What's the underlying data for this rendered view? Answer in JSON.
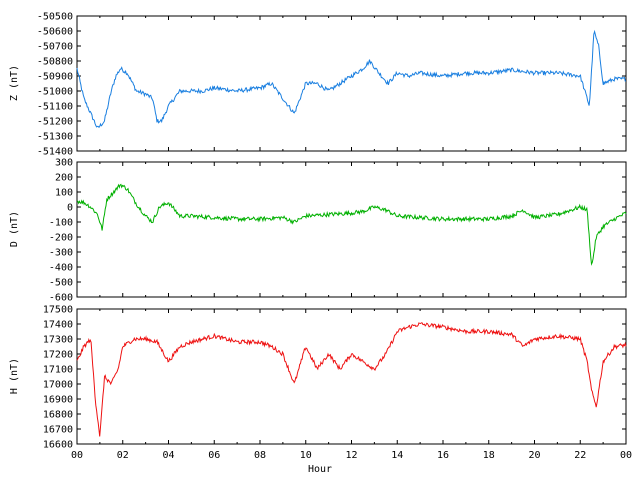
{
  "chart_data": {
    "type": "line",
    "x_axis": {
      "label": "Hour",
      "range": [
        0,
        24
      ],
      "tick_labels": [
        "00",
        "02",
        "04",
        "06",
        "08",
        "10",
        "12",
        "14",
        "16",
        "18",
        "20",
        "22",
        "00"
      ]
    },
    "panels": [
      {
        "ylabel": "Z (nT)",
        "color": "#1a7fe0",
        "ylim": [
          -51400,
          -50500
        ],
        "yticks": [
          -50500,
          -50600,
          -50700,
          -50800,
          -50900,
          -51000,
          -51100,
          -51200,
          -51300,
          -51400
        ],
        "series": {
          "x": [
            0,
            0.3,
            0.6,
            0.9,
            1.2,
            1.5,
            1.7,
            1.9,
            2.2,
            2.6,
            3.0,
            3.3,
            3.5,
            3.7,
            4.0,
            4.5,
            5.0,
            5.5,
            6.0,
            7.0,
            8.0,
            8.5,
            9.0,
            9.5,
            10.0,
            10.5,
            11.0,
            11.5,
            12.0,
            12.5,
            12.8,
            13.2,
            13.6,
            14.0,
            14.5,
            15.0,
            16.0,
            17.0,
            18.0,
            19.0,
            20.0,
            21.0,
            22.0,
            22.4,
            22.6,
            22.8,
            23.0,
            23.5,
            24.0
          ],
          "y": [
            -50850,
            -51050,
            -51150,
            -51250,
            -51200,
            -51000,
            -50900,
            -50850,
            -50880,
            -51000,
            -51020,
            -51050,
            -51200,
            -51200,
            -51100,
            -51000,
            -51000,
            -51000,
            -50980,
            -51000,
            -50980,
            -50950,
            -51050,
            -51150,
            -50950,
            -50950,
            -51000,
            -50950,
            -50900,
            -50850,
            -50800,
            -50880,
            -50950,
            -50880,
            -50900,
            -50880,
            -50900,
            -50880,
            -50880,
            -50860,
            -50880,
            -50880,
            -50900,
            -51100,
            -50600,
            -50700,
            -50950,
            -50920,
            -50920
          ]
        }
      },
      {
        "ylabel": "D (nT)",
        "color": "#00b000",
        "ylim": [
          -600,
          300
        ],
        "yticks": [
          300,
          200,
          100,
          0,
          -100,
          -200,
          -300,
          -400,
          -500,
          -600
        ],
        "series": {
          "x": [
            0,
            0.3,
            0.6,
            0.9,
            1.1,
            1.3,
            1.6,
            1.9,
            2.2,
            2.6,
            3.0,
            3.3,
            3.6,
            4.0,
            4.5,
            5.0,
            6.0,
            7.0,
            8.0,
            9.0,
            9.5,
            10.0,
            11.0,
            12.0,
            12.5,
            13.0,
            13.5,
            14.0,
            15.0,
            16.0,
            17.0,
            18.0,
            19.0,
            19.5,
            20.0,
            21.0,
            22.0,
            22.3,
            22.5,
            22.7,
            23.0,
            23.5,
            24.0
          ],
          "y": [
            40,
            30,
            0,
            -50,
            -150,
            50,
            100,
            150,
            120,
            20,
            -60,
            -100,
            0,
            30,
            -60,
            -60,
            -70,
            -80,
            -80,
            -70,
            -100,
            -60,
            -50,
            -40,
            -30,
            0,
            -20,
            -60,
            -70,
            -80,
            -80,
            -80,
            -60,
            -20,
            -70,
            -50,
            0,
            -20,
            -400,
            -200,
            -130,
            -80,
            -40
          ]
        }
      },
      {
        "ylabel": "H (nT)",
        "color": "#ee1111",
        "ylim": [
          16600,
          17500
        ],
        "yticks": [
          17500,
          17400,
          17300,
          17200,
          17100,
          17000,
          16900,
          16800,
          16700,
          16600
        ],
        "series": {
          "x": [
            0,
            0.3,
            0.6,
            0.8,
            1.0,
            1.2,
            1.5,
            1.8,
            2.0,
            2.5,
            3.0,
            3.5,
            4.0,
            4.5,
            5.0,
            5.5,
            6.0,
            6.5,
            7.0,
            8.0,
            8.5,
            9.0,
            9.5,
            10.0,
            10.5,
            11.0,
            11.5,
            12.0,
            12.5,
            13.0,
            13.5,
            14.0,
            14.5,
            15.0,
            16.0,
            17.0,
            18.0,
            19.0,
            19.5,
            20.0,
            21.0,
            22.0,
            22.3,
            22.5,
            22.7,
            23.0,
            23.5,
            24.0
          ],
          "y": [
            17150,
            17250,
            17300,
            16900,
            16650,
            17050,
            17000,
            17100,
            17250,
            17300,
            17300,
            17280,
            17150,
            17250,
            17280,
            17300,
            17320,
            17300,
            17280,
            17280,
            17250,
            17200,
            17000,
            17250,
            17100,
            17200,
            17100,
            17200,
            17150,
            17100,
            17200,
            17350,
            17380,
            17400,
            17380,
            17350,
            17350,
            17330,
            17250,
            17300,
            17320,
            17300,
            17150,
            16950,
            16850,
            17150,
            17250,
            17260
          ]
        }
      }
    ]
  }
}
